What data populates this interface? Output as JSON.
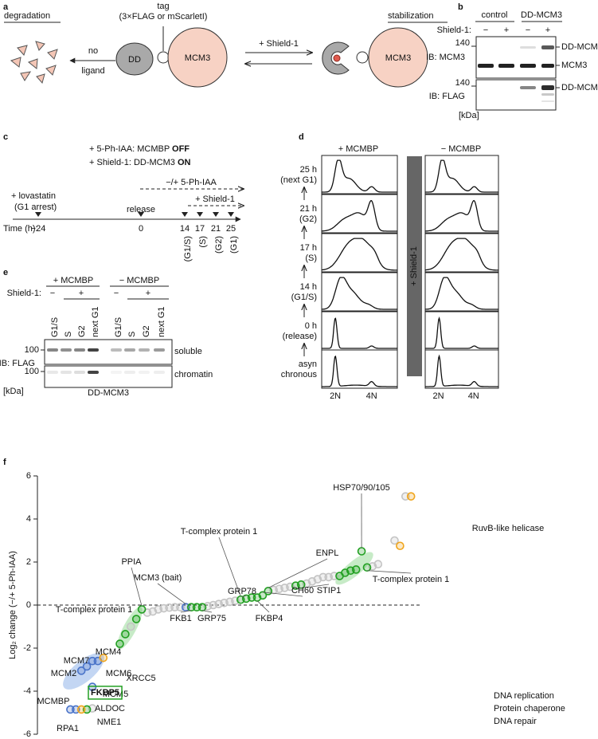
{
  "panel_a": {
    "label": "a",
    "degradation": "degradation",
    "stabilization": "stabilization",
    "tag": "tag",
    "tag_detail": "(3×FLAG or mScarletI)",
    "dd": "DD",
    "mcm3": "MCM3",
    "no": "no",
    "ligand": "ligand",
    "shield": "+ Shield-1",
    "mcm3_right": "MCM3"
  },
  "panel_b": {
    "label": "b",
    "groups": [
      "control",
      "DD-MCM3"
    ],
    "shield_label": "Shield-1:",
    "shield_signs": [
      "−",
      "+",
      "−",
      "+"
    ],
    "blots": [
      {
        "label": "IB: MCM3",
        "marker": "140",
        "bands": [
          "DD-MCM3",
          "MCM3"
        ]
      },
      {
        "label": "IB: FLAG",
        "marker": "140",
        "bands": [
          "DD-MCM3"
        ]
      }
    ],
    "unit": "[kDa]"
  },
  "panel_c": {
    "label": "c",
    "line1": {
      "text": "+ 5-Ph-IAA: MCMBP",
      "bold": "OFF"
    },
    "line2": {
      "text": "+ Shield-1: DD-MCM3",
      "bold": "ON"
    },
    "iaa": "−/+ 5-Ph-IAA",
    "shield": "+ Shield-1",
    "lovastatin": "+ lovastatin",
    "arrest": "(G1 arrest)",
    "release": "release",
    "time_label": "Time (h):",
    "times": [
      "−24",
      "0",
      "14",
      "17",
      "21",
      "25"
    ],
    "phases": [
      "(G1/S)",
      "(S)",
      "(G2)",
      "(G1)"
    ]
  },
  "panel_d": {
    "label": "d",
    "columns": [
      "+ MCMBP",
      "− MCMBP"
    ],
    "rows": [
      [
        "25 h",
        "(next G1)"
      ],
      [
        "21 h",
        "(G2)"
      ],
      [
        "17 h",
        "(S)"
      ],
      [
        "14 h",
        "(G1/S)"
      ],
      [
        "0 h",
        "(release)"
      ],
      [
        "asyn",
        "chronous"
      ]
    ],
    "shield": "+ Shield-1",
    "x_labels": [
      "2N",
      "4N"
    ]
  },
  "panel_e": {
    "label": "e",
    "groups": [
      "+ MCMBP",
      "− MCMBP"
    ],
    "shield_label": "Shield-1:",
    "shield_signs": [
      "−",
      "+",
      "−",
      "+"
    ],
    "lanes": [
      "G1/S",
      "S",
      "G2",
      "next G1",
      "G1/S",
      "S",
      "G2",
      "next G1"
    ],
    "blots": [
      {
        "label": "soluble",
        "marker": "100"
      },
      {
        "label": "chromatin",
        "marker": "100"
      }
    ],
    "ib": "IB: FLAG",
    "unit": "[kDa]",
    "protein": "DD-MCM3"
  },
  "chart_data": {
    "type": "scatter",
    "panel_label": "f",
    "y_label": "Log₂ change (−/+ 5-Ph-IAA)",
    "xlim": [
      0,
      70
    ],
    "ylim": [
      -6,
      6
    ],
    "yticks": [
      -6,
      -4,
      -2,
      0,
      2,
      4,
      6
    ],
    "zero_line": true,
    "legend": "lower right",
    "series": [
      {
        "name": "DNA replication",
        "color": "#4a74c9",
        "x": [
          6,
          7,
          8,
          9,
          10,
          11,
          10,
          27
        ],
        "values": [
          -4.85,
          -4.85,
          -3.05,
          -2.85,
          -2.6,
          -2.6,
          -3.8,
          -0.1
        ]
      },
      {
        "name": "Protein chaperone",
        "color": "#22a022",
        "x": [
          9,
          15,
          16,
          18,
          19,
          28,
          29,
          30,
          37,
          38,
          39,
          40,
          41,
          42,
          47,
          48,
          55,
          56,
          57,
          58,
          59,
          60
        ],
        "values": [
          -4.85,
          -1.8,
          -1.35,
          -0.65,
          -0.2,
          -0.1,
          -0.1,
          -0.1,
          0.25,
          0.3,
          0.35,
          0.35,
          0.45,
          0.65,
          0.9,
          0.95,
          1.35,
          1.5,
          1.6,
          1.65,
          2.5,
          1.75
        ]
      },
      {
        "name": "DNA repair",
        "color": "#f0a51c",
        "x": [
          8,
          12,
          66,
          68
        ],
        "values": [
          -4.85,
          -2.45,
          2.75,
          5.05
        ]
      }
    ],
    "other_points": {
      "color": "#c4c4c4",
      "x": [
        10,
        17,
        20,
        21,
        22,
        23,
        24,
        25,
        26,
        31,
        32,
        33,
        34,
        35,
        36,
        43,
        44,
        45,
        46,
        49,
        50,
        51,
        52,
        53,
        54,
        61,
        62,
        65,
        67
      ],
      "values": [
        -4.8,
        -1.0,
        -0.35,
        -0.3,
        -0.2,
        -0.15,
        -0.12,
        -0.1,
        -0.1,
        -0.05,
        0,
        0.05,
        0.1,
        0.15,
        0.2,
        0.7,
        0.75,
        0.8,
        0.85,
        1.0,
        1.1,
        1.2,
        1.3,
        1.3,
        1.35,
        1.8,
        1.9,
        3.0,
        5.05
      ]
    },
    "annotations": [
      "RuvB-like helicase",
      "HSP70/90/105",
      "T-complex protein 1",
      "T-complex protein 1",
      "ENPL",
      "STIP1",
      "CH60",
      "GRP78",
      "FKBP4",
      "MCM3 (bait)",
      "PPIA",
      "FKB1",
      "GRP75",
      "T-complex protein 1",
      "MCM4",
      "MCM7",
      "MCM2",
      "MCM6",
      "XRCC5",
      "MCM5",
      "MCMBP",
      "FKBP5",
      "ALDOC",
      "NME1",
      "RPA1"
    ]
  }
}
